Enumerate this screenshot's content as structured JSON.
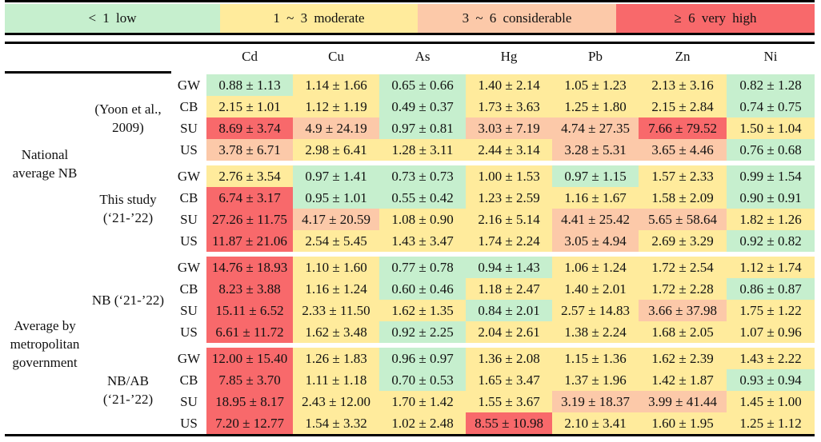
{
  "legend": [
    {
      "label": "< 1 low",
      "level": "low",
      "color": "#c6efce"
    },
    {
      "label": "1 ~ 3 moderate",
      "level": "moderate",
      "color": "#ffeb9c"
    },
    {
      "label": "3 ~ 6 considerable",
      "level": "considerable",
      "color": "#fcc9a9"
    },
    {
      "label": "≥ 6 very high",
      "level": "very-high",
      "color": "#f8696b"
    }
  ],
  "columns": [
    "Cd",
    "Cu",
    "As",
    "Hg",
    "Pb",
    "Zn",
    "Ni"
  ],
  "groups": [
    {
      "label": "National average NB",
      "subgroups": [
        {
          "label": "(Yoon et al., 2009)",
          "rows": [
            {
              "code": "GW",
              "values": [
                "0.88 ± 1.13",
                "1.14 ± 1.66",
                "0.65 ± 0.66",
                "1.40 ± 2.14",
                "1.05 ± 1.23",
                "2.13 ± 3.16",
                "0.82 ± 1.28"
              ]
            },
            {
              "code": "CB",
              "values": [
                "2.15 ± 1.01",
                "1.12 ± 1.19",
                "0.49 ± 0.37",
                "1.73 ± 3.63",
                "1.25 ± 1.80",
                "2.15 ± 2.84",
                "0.74 ± 0.75"
              ]
            },
            {
              "code": "SU",
              "values": [
                "8.69 ± 3.74",
                "4.9 ± 24.19",
                "0.97 ± 0.81",
                "3.03 ± 7.19",
                "4.74 ± 27.35",
                "7.66 ± 79.52",
                "1.50 ± 1.04"
              ]
            },
            {
              "code": "US",
              "values": [
                "3.78 ± 6.71",
                "2.98 ± 6.41",
                "1.28 ± 3.11",
                "2.44 ± 3.14",
                "3.28 ± 5.31",
                "3.65 ± 4.46",
                "0.76 ± 0.68"
              ]
            }
          ]
        },
        {
          "label": "This study (‘21-’22)",
          "rows": [
            {
              "code": "GW",
              "values": [
                "2.76 ± 3.54",
                "0.97 ± 1.41",
                "0.73 ± 0.73",
                "1.00 ± 1.53",
                "0.97 ± 1.15",
                "1.57 ± 2.33",
                "0.99 ± 1.54"
              ]
            },
            {
              "code": "CB",
              "values": [
                "6.74 ± 3.17",
                "0.95 ± 1.01",
                "0.55 ± 0.42",
                "1.23 ± 2.59",
                "1.16 ± 1.67",
                "1.58 ± 2.09",
                "0.90 ± 0.91"
              ]
            },
            {
              "code": "SU",
              "values": [
                "27.26 ± 11.75",
                "4.17 ± 20.59",
                "1.08 ± 0.90",
                "2.16 ± 5.14",
                "4.41 ± 25.42",
                "5.65 ± 58.64",
                "1.82 ± 1.26"
              ]
            },
            {
              "code": "US",
              "values": [
                "11.87 ± 21.06",
                "2.54 ± 5.45",
                "1.43 ± 3.47",
                "1.74 ± 2.24",
                "3.05 ± 4.94",
                "2.69 ± 3.29",
                "0.92 ± 0.82"
              ]
            }
          ]
        }
      ]
    },
    {
      "label": "Average by metropolitan government",
      "subgroups": [
        {
          "label": "NB (‘21-’22)",
          "rows": [
            {
              "code": "GW",
              "values": [
                "14.76 ± 18.93",
                "1.10 ± 1.60",
                "0.77 ± 0.78",
                "0.94 ± 1.43",
                "1.06 ± 1.24",
                "1.72 ± 2.54",
                "1.12 ± 1.74"
              ]
            },
            {
              "code": "CB",
              "values": [
                "8.23 ± 3.88",
                "1.16 ± 1.24",
                "0.60 ± 0.46",
                "1.18 ± 2.47",
                "1.40 ± 2.01",
                "1.72 ± 2.28",
                "0.86 ± 0.87"
              ]
            },
            {
              "code": "SU",
              "values": [
                "15.11 ± 6.52",
                "2.33 ± 11.50",
                "1.62 ± 1.35",
                "0.84 ± 2.01",
                "2.57 ± 14.83",
                "3.66 ± 37.98",
                "1.75 ± 1.22"
              ]
            },
            {
              "code": "US",
              "values": [
                "6.61 ± 11.72",
                "1.62 ± 3.48",
                "0.92 ± 2.25",
                "2.04 ± 2.61",
                "1.38 ± 2.24",
                "1.68 ± 2.05",
                "1.07 ± 0.96"
              ]
            }
          ]
        },
        {
          "label": "NB/AB (‘21-’22)",
          "rows": [
            {
              "code": "GW",
              "values": [
                "12.00 ± 15.40",
                "1.26 ± 1.83",
                "0.96 ± 0.97",
                "1.36 ± 2.08",
                "1.15 ± 1.36",
                "1.62 ± 2.39",
                "1.43 ± 2.22"
              ]
            },
            {
              "code": "CB",
              "values": [
                "7.85 ± 3.70",
                "1.11 ± 1.18",
                "0.70 ± 0.53",
                "1.65 ± 3.47",
                "1.37 ± 1.96",
                "1.42 ± 1.87",
                "0.93 ± 0.94"
              ]
            },
            {
              "code": "SU",
              "values": [
                "18.95 ± 8.17",
                "2.43 ± 12.00",
                "1.70 ± 1.42",
                "1.55 ± 3.67",
                "3.19 ± 18.37",
                "3.99 ± 41.44",
                "1.45 ± 1.00"
              ]
            },
            {
              "code": "US",
              "values": [
                "7.20 ± 12.77",
                "1.54 ± 3.32",
                "1.02 ± 2.48",
                "8.55 ± 10.98",
                "2.10 ± 3.41",
                "1.60 ± 1.95",
                "1.25 ± 1.12"
              ]
            }
          ]
        }
      ]
    }
  ]
}
